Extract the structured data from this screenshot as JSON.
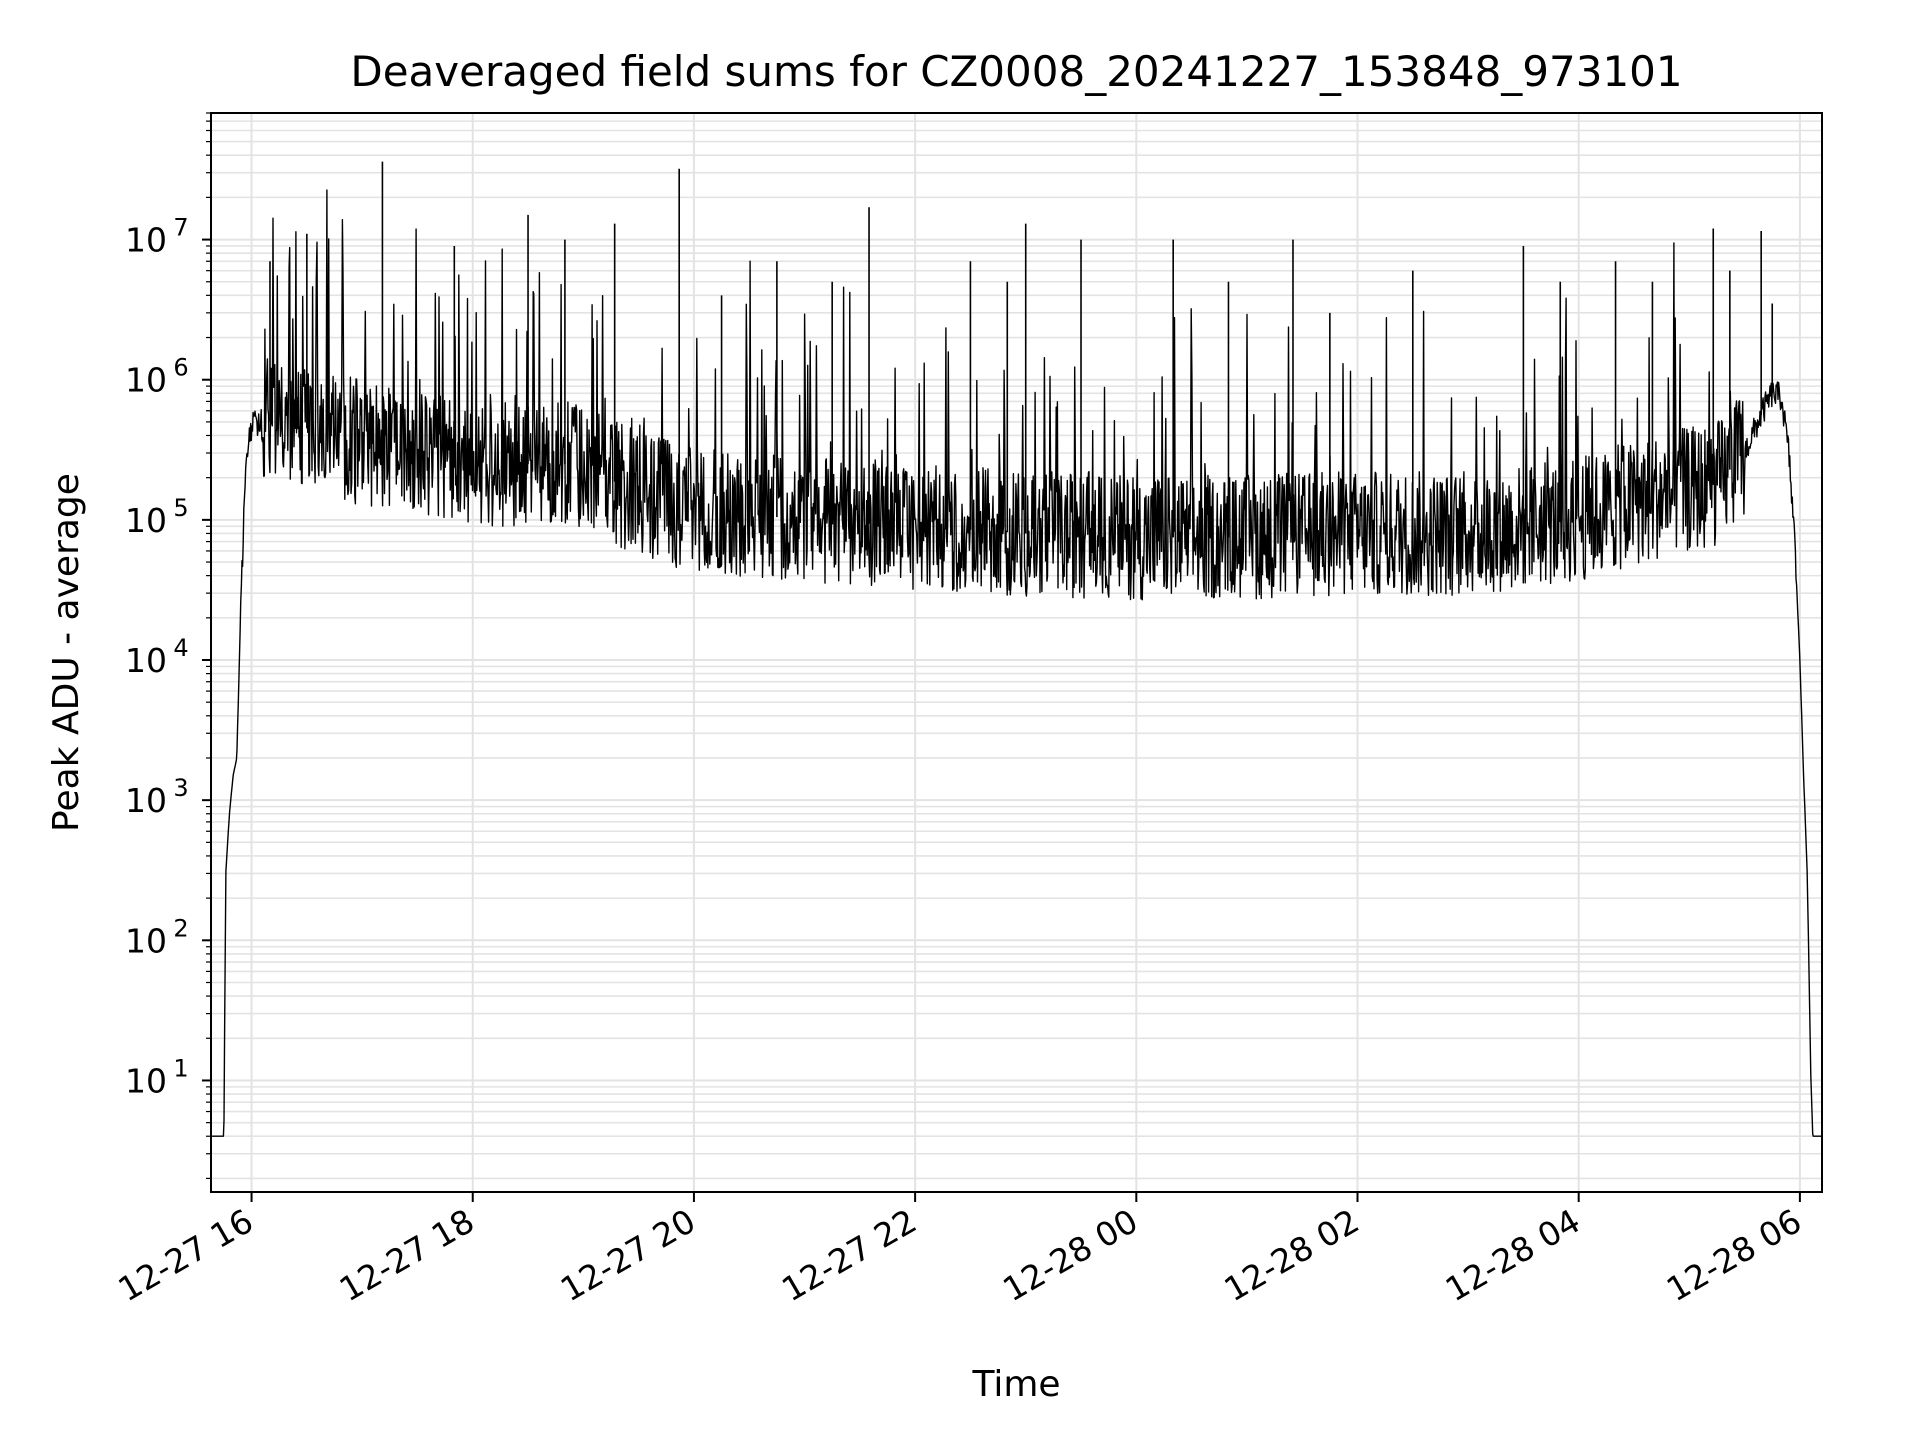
{
  "chart_data": {
    "type": "line",
    "title": "Deaveraged field sums for CZ0008_20241227_153848_973101",
    "xlabel": "Time",
    "ylabel": "Peak ADU - average",
    "y_scale": "log",
    "grid": true,
    "grid_color": "#e3e3e3",
    "line_color": "#000000",
    "xlim": [
      "2024-12-27 15:38",
      "2024-12-28 06:12"
    ],
    "ylim": [
      1.6,
      80000000
    ],
    "x_ticks": [
      {
        "value": "2024-12-27 16:00",
        "label": "12-27 16"
      },
      {
        "value": "2024-12-27 18:00",
        "label": "12-27 18"
      },
      {
        "value": "2024-12-27 20:00",
        "label": "12-27 20"
      },
      {
        "value": "2024-12-27 22:00",
        "label": "12-27 22"
      },
      {
        "value": "2024-12-28 00:00",
        "label": "12-28 00"
      },
      {
        "value": "2024-12-28 02:00",
        "label": "12-28 02"
      },
      {
        "value": "2024-12-28 04:00",
        "label": "12-28 04"
      },
      {
        "value": "2024-12-28 06:00",
        "label": "12-28 06"
      }
    ],
    "y_ticks": [
      {
        "value": 10,
        "base": "10",
        "exp": "1"
      },
      {
        "value": 100,
        "base": "10",
        "exp": "2"
      },
      {
        "value": 1000,
        "base": "10",
        "exp": "3"
      },
      {
        "value": 10000,
        "base": "10",
        "exp": "4"
      },
      {
        "value": 100000,
        "base": "10",
        "exp": "5"
      },
      {
        "value": 1000000,
        "base": "10",
        "exp": "6"
      },
      {
        "value": 10000000,
        "base": "10",
        "exp": "7"
      }
    ],
    "series": [
      {
        "x": [
          "2024-12-27 15:38",
          "2024-12-27 15:45",
          "2024-12-27 15:46",
          "2024-12-27 15:48",
          "2024-12-27 15:50",
          "2024-12-27 15:52",
          "2024-12-27 15:54",
          "2024-12-27 15:56",
          "2024-12-27 15:58",
          "2024-12-27 16:00",
          "2024-12-27 16:03",
          "2024-12-27 16:06",
          "2024-12-27 16:10",
          "2024-12-27 16:15",
          "2024-12-27 16:20",
          "2024-12-27 16:30",
          "2024-12-27 16:45",
          "2024-12-27 17:00",
          "2024-12-27 17:30",
          "2024-12-27 18:00",
          "2024-12-27 18:30",
          "2024-12-27 19:00",
          "2024-12-27 19:30",
          "2024-12-27 20:00",
          "2024-12-27 21:00",
          "2024-12-27 22:00",
          "2024-12-27 23:00",
          "2024-12-28 00:00",
          "2024-12-28 01:00",
          "2024-12-28 02:00",
          "2024-12-28 03:00",
          "2024-12-28 04:00",
          "2024-12-28 04:45",
          "2024-12-28 05:15",
          "2024-12-28 05:30",
          "2024-12-28 05:40",
          "2024-12-28 05:45",
          "2024-12-28 05:50",
          "2024-12-28 05:54",
          "2024-12-28 05:57",
          "2024-12-28 06:00",
          "2024-12-28 06:02",
          "2024-12-28 06:04",
          "2024-12-28 06:06",
          "2024-12-28 06:07",
          "2024-12-28 06:12"
        ],
        "y": [
          4,
          4,
          300,
          800,
          1500,
          2000,
          20000,
          130000,
          350000,
          450000,
          500000,
          520000,
          500000,
          480000,
          450000,
          450000,
          400000,
          350000,
          300000,
          250000,
          250000,
          250000,
          150000,
          120000,
          100000,
          90000,
          80000,
          75000,
          75000,
          80000,
          80000,
          100000,
          150000,
          180000,
          300000,
          600000,
          800000,
          750000,
          300000,
          80000,
          10000,
          1500,
          300,
          10,
          4,
          4
        ]
      }
    ],
    "spikes": [
      {
        "x": "2024-12-27 17:11",
        "y": 36000000
      },
      {
        "x": "2024-12-27 19:52",
        "y": 32000000
      },
      {
        "x": "2024-12-27 21:35",
        "y": 17000000
      },
      {
        "x": "2024-12-27 18:30",
        "y": 15000000
      },
      {
        "x": "2024-12-28 05:13",
        "y": 12000000
      },
      {
        "x": "2024-12-28 05:39",
        "y": 11500000
      },
      {
        "x": "2024-12-27 16:30",
        "y": 11000000
      },
      {
        "x": "2024-12-27 19:17",
        "y": 13000000
      },
      {
        "x": "2024-12-27 23:00",
        "y": 13000000
      },
      {
        "x": "2024-12-27 23:30",
        "y": 10000000
      },
      {
        "x": "2024-12-28 00:20",
        "y": 10000000
      },
      {
        "x": "2024-12-28 01:25",
        "y": 10000000
      },
      {
        "x": "2024-12-28 03:30",
        "y": 9000000
      },
      {
        "x": "2024-12-28 04:20",
        "y": 7000000
      },
      {
        "x": "2024-12-27 22:30",
        "y": 7000000
      },
      {
        "x": "2024-12-27 20:45",
        "y": 7000000
      },
      {
        "x": "2024-12-27 16:10",
        "y": 7000000
      },
      {
        "x": "2024-12-27 17:50",
        "y": 9000000
      },
      {
        "x": "2024-12-27 18:50",
        "y": 10000000
      },
      {
        "x": "2024-12-28 02:30",
        "y": 6000000
      },
      {
        "x": "2024-12-28 00:50",
        "y": 5000000
      },
      {
        "x": "2024-12-28 03:50",
        "y": 5000000
      },
      {
        "x": "2024-12-28 05:22",
        "y": 6000000
      },
      {
        "x": "2024-12-27 20:15",
        "y": 4000000
      },
      {
        "x": "2024-12-27 21:15",
        "y": 5000000
      },
      {
        "x": "2024-12-27 22:50",
        "y": 5000000
      },
      {
        "x": "2024-12-28 01:45",
        "y": 3000000
      },
      {
        "x": "2024-12-28 04:40",
        "y": 5000000
      },
      {
        "x": "2024-12-28 05:45",
        "y": 3500000
      }
    ]
  }
}
